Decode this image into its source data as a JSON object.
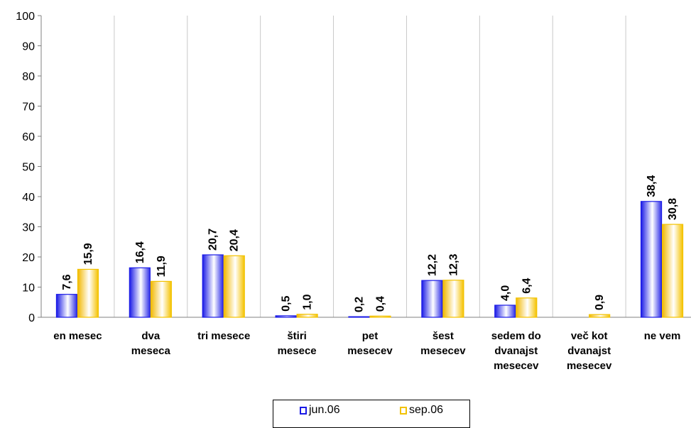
{
  "chart_data": {
    "type": "bar",
    "categories": [
      [
        "en mesec"
      ],
      [
        "dva",
        "meseca"
      ],
      [
        "tri mesece"
      ],
      [
        "štiri",
        "mesece"
      ],
      [
        "pet",
        "mesecev"
      ],
      [
        "šest",
        "mesecev"
      ],
      [
        "sedem do",
        "dvanajst",
        "mesecev"
      ],
      [
        "več kot",
        "dvanajst",
        "mesecev"
      ],
      [
        "ne vem"
      ]
    ],
    "series": [
      {
        "name": "jun.06",
        "color": "#1a1ae6",
        "values": [
          7.6,
          16.4,
          20.7,
          0.5,
          0.2,
          12.2,
          4.0,
          null,
          38.4
        ],
        "labels": [
          "7,6",
          "16,4",
          "20,7",
          "0,5",
          "0,2",
          "12,2",
          "4,0",
          "",
          "38,4"
        ]
      },
      {
        "name": "sep.06",
        "color": "#f2c200",
        "values": [
          15.9,
          11.9,
          20.4,
          1.0,
          0.4,
          12.3,
          6.4,
          0.9,
          30.8
        ],
        "labels": [
          "15,9",
          "11,9",
          "20,4",
          "1,0",
          "0,4",
          "12,3",
          "6,4",
          "0,9",
          "30,8"
        ]
      }
    ],
    "ylim": [
      0,
      100
    ],
    "yticks": [
      "0",
      "10",
      "20",
      "30",
      "40",
      "50",
      "60",
      "70",
      "80",
      "90",
      "100"
    ],
    "grid": {
      "vertical": true,
      "horizontal": false
    },
    "legend_position": "bottom"
  }
}
